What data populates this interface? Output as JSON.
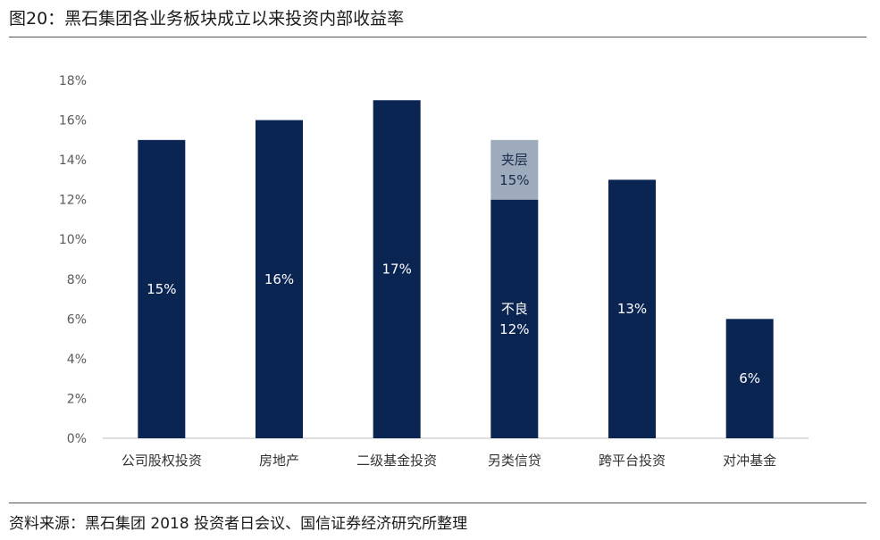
{
  "title": "图20：黑石集团各业务板块成立以来投资内部收益率",
  "source": "资料来源：黑石集团 2018 投资者日会议、国信证券经济研究所整理",
  "colors": {
    "primary": "#0b2553",
    "stacked": "#9eabbd"
  },
  "chart_data": {
    "type": "bar",
    "stacked": true,
    "categories": [
      "公司股权投资",
      "房地产",
      "二级基金投资",
      "另类信贷",
      "跨平台投资",
      "对冲基金"
    ],
    "ylim": [
      0,
      18
    ],
    "yticks": [
      "0%",
      "2%",
      "4%",
      "6%",
      "8%",
      "10%",
      "12%",
      "14%",
      "16%",
      "18%"
    ],
    "series": [
      {
        "values": [
          15,
          16,
          17,
          12,
          13,
          6
        ],
        "labels": [
          "15%",
          "16%",
          "17%",
          "不良\n12%",
          "13%",
          "6%"
        ]
      },
      {
        "values": [
          0,
          0,
          0,
          3,
          0,
          0
        ],
        "labels": [
          "",
          "",
          "",
          "夹层\n15%",
          "",
          ""
        ]
      }
    ],
    "grid": false,
    "legend": "none"
  }
}
